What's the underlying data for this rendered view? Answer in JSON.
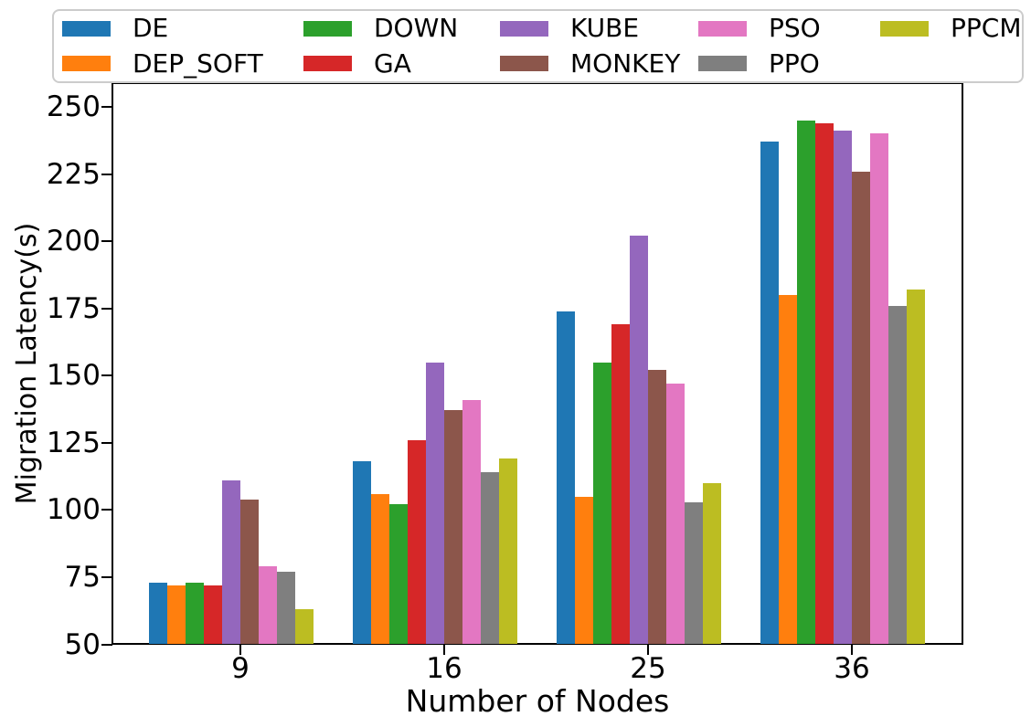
{
  "chart_data": {
    "type": "bar",
    "title": "",
    "xlabel": "Number of Nodes",
    "ylabel": "Migration Latency(s)",
    "categories": [
      "9",
      "16",
      "25",
      "36"
    ],
    "series": [
      {
        "name": "DE",
        "color": "#1f77b4",
        "values": [
          73,
          118,
          174,
          237
        ]
      },
      {
        "name": "DEP_SOFT",
        "color": "#ff7f0e",
        "values": [
          72,
          106,
          105,
          180
        ]
      },
      {
        "name": "DOWN",
        "color": "#2ca02c",
        "values": [
          73,
          102,
          155,
          245
        ]
      },
      {
        "name": "GA",
        "color": "#d62728",
        "values": [
          72,
          126,
          169,
          244
        ]
      },
      {
        "name": "KUBE",
        "color": "#9467bd",
        "values": [
          111,
          155,
          202,
          241
        ]
      },
      {
        "name": "MONKEY",
        "color": "#8c564b",
        "values": [
          104,
          137,
          152,
          226
        ]
      },
      {
        "name": "PSO",
        "color": "#e377c2",
        "values": [
          79,
          141,
          147,
          240
        ]
      },
      {
        "name": "PPO",
        "color": "#7f7f7f",
        "values": [
          77,
          114,
          103,
          176
        ]
      },
      {
        "name": "PPCM",
        "color": "#bcbd22",
        "values": [
          63,
          119,
          110,
          182
        ]
      }
    ],
    "ylim": [
      50,
      259
    ],
    "yticks": [
      50,
      75,
      100,
      125,
      150,
      175,
      200,
      225,
      250
    ],
    "grid": false,
    "legend_position": "top",
    "legend_columns": 5
  }
}
